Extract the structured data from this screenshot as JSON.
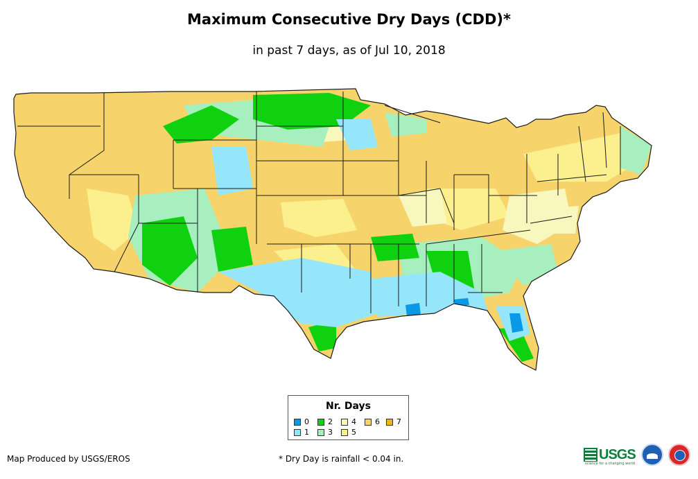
{
  "title": "Maximum Consecutive Dry Days (CDD)*",
  "subtitle": "in past 7 days, as of Jul 10, 2018",
  "legend": {
    "title": "Nr. Days",
    "items": [
      {
        "label": "0",
        "color": "#0a99e6"
      },
      {
        "label": "1",
        "color": "#95e6fa"
      },
      {
        "label": "2",
        "color": "#0fd10f"
      },
      {
        "label": "3",
        "color": "#a8efc0"
      },
      {
        "label": "4",
        "color": "#f8f7bd"
      },
      {
        "label": "5",
        "color": "#fbef8e"
      },
      {
        "label": "6",
        "color": "#f7d46b"
      },
      {
        "label": "7",
        "color": "#f4b40c"
      }
    ]
  },
  "credit": "Map Produced by USGS/EROS",
  "footnote": "* Dry Day is rainfall < 0.04 in.",
  "logos": {
    "usgs": "USGS",
    "usgs_tagline": "science for a changing world"
  },
  "colors": {
    "state_border": "#1a1a1a",
    "background": "#ffffff"
  }
}
